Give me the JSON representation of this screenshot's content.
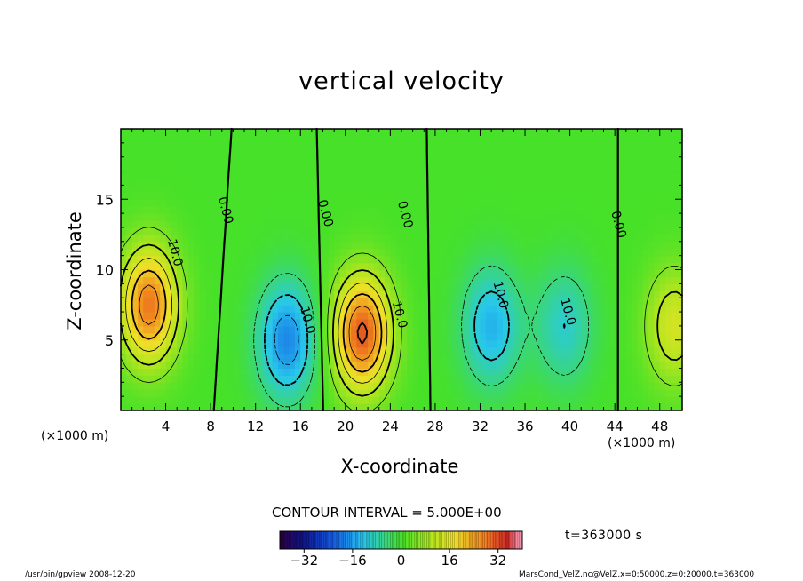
{
  "chart_data": {
    "type": "heatmap",
    "title": "vertical velocity",
    "xlabel": "X-coordinate",
    "ylabel": "Z-coordinate",
    "x_unit_label": "(×1000 m)",
    "xlim": [
      0,
      50
    ],
    "ylim": [
      0,
      20
    ],
    "x_ticks": [
      4,
      8,
      12,
      16,
      20,
      24,
      28,
      32,
      36,
      40,
      44,
      48
    ],
    "y_ticks": [
      5,
      10,
      15
    ],
    "colorbar": {
      "range": [
        -40,
        40
      ],
      "ticks": [
        -32,
        -16,
        0,
        16,
        32
      ],
      "tick_labels": [
        "−32",
        "−16",
        "0",
        "16",
        "32"
      ]
    },
    "contour_interval_text": "CONTOUR INTERVAL = 5.000E+00",
    "contour_labels": [
      {
        "text": "0.00",
        "x": 9.3,
        "z": 14.2
      },
      {
        "text": "0.00",
        "x": 18.2,
        "z": 14.0
      },
      {
        "text": "0.00",
        "x": 25.3,
        "z": 13.9
      },
      {
        "text": "0.00",
        "x": 44.3,
        "z": 13.2
      },
      {
        "text": "10.0",
        "x": 4.8,
        "z": 11.2
      },
      {
        "text": "10.0",
        "x": 16.6,
        "z": 6.4
      },
      {
        "text": "10.0",
        "x": 24.8,
        "z": 6.8
      },
      {
        "text": "10.0",
        "x": 33.8,
        "z": 8.2
      },
      {
        "text": "10.0",
        "x": 39.8,
        "z": 7.0
      }
    ],
    "extrema": [
      {
        "x": 2.5,
        "z": 7.5,
        "w": 28
      },
      {
        "x": 21.5,
        "z": 5.5,
        "w": 31
      },
      {
        "x": 14.8,
        "z": 5.0,
        "w": -18
      },
      {
        "x": 33.0,
        "z": 6.0,
        "w": -14
      },
      {
        "x": 39.5,
        "z": 6.0,
        "w": -10
      },
      {
        "x": 49.3,
        "z": 6.0,
        "w": 14
      }
    ],
    "time_label": "t=363000 s"
  },
  "footer": {
    "left": "/usr/bin/gpview   2008-12-20",
    "right": "MarsCond_VelZ.nc@VelZ,x=0:50000,z=0:20000,t=363000"
  }
}
